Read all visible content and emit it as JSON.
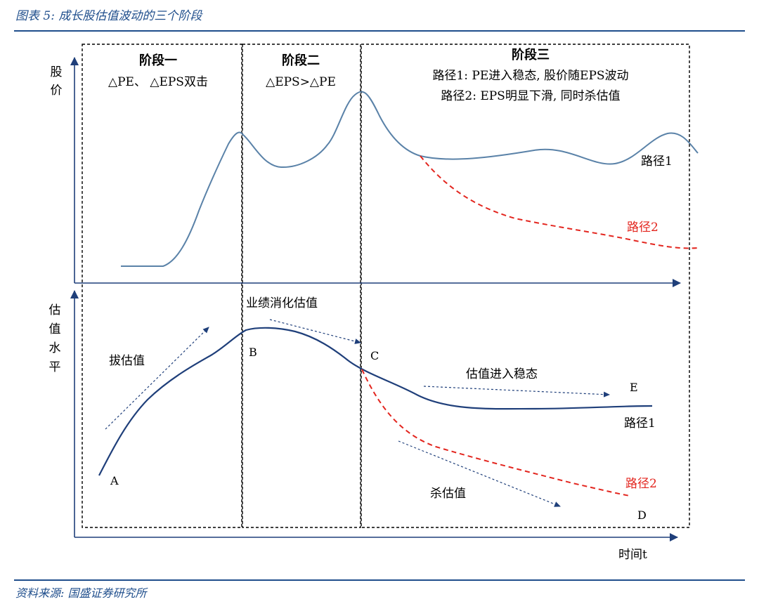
{
  "figure": {
    "title": "图表 5:  成长股估值波动的三个阶段",
    "source": "资料来源:  国盛证券研究所"
  },
  "stage1": {
    "heading": "阶段一",
    "desc": "△PE、 △EPS双击"
  },
  "stage2": {
    "heading": "阶段二",
    "desc": "△EPS>△PE"
  },
  "stage3": {
    "heading": "阶段三",
    "path1_desc": "路径1:  PE进入稳态, 股价随EPS波动",
    "path2_desc": "路径2:    EPS明显下滑, 同时杀估值"
  },
  "top_panel": {
    "ylabel": [
      "股",
      "价"
    ],
    "path1_label": "路径1",
    "path2_label": "路径2",
    "path2_color": "#e3261f",
    "path1_color": "#5a82a8"
  },
  "bottom_panel": {
    "ylabel": [
      "估",
      "值",
      "水",
      "平"
    ],
    "xlabel": "时间t",
    "annotations": {
      "raise_valuation": "拔估值",
      "digest_valuation": "业绩消化估值",
      "stable_valuation": "估值进入稳态",
      "kill_valuation": "杀估值"
    },
    "points": {
      "a": "A",
      "b": "B",
      "c": "C",
      "d": "D",
      "e": "E"
    },
    "path1_label": "路径1",
    "path2_label": "路径2",
    "curve_color": "#1f3f7a"
  }
}
